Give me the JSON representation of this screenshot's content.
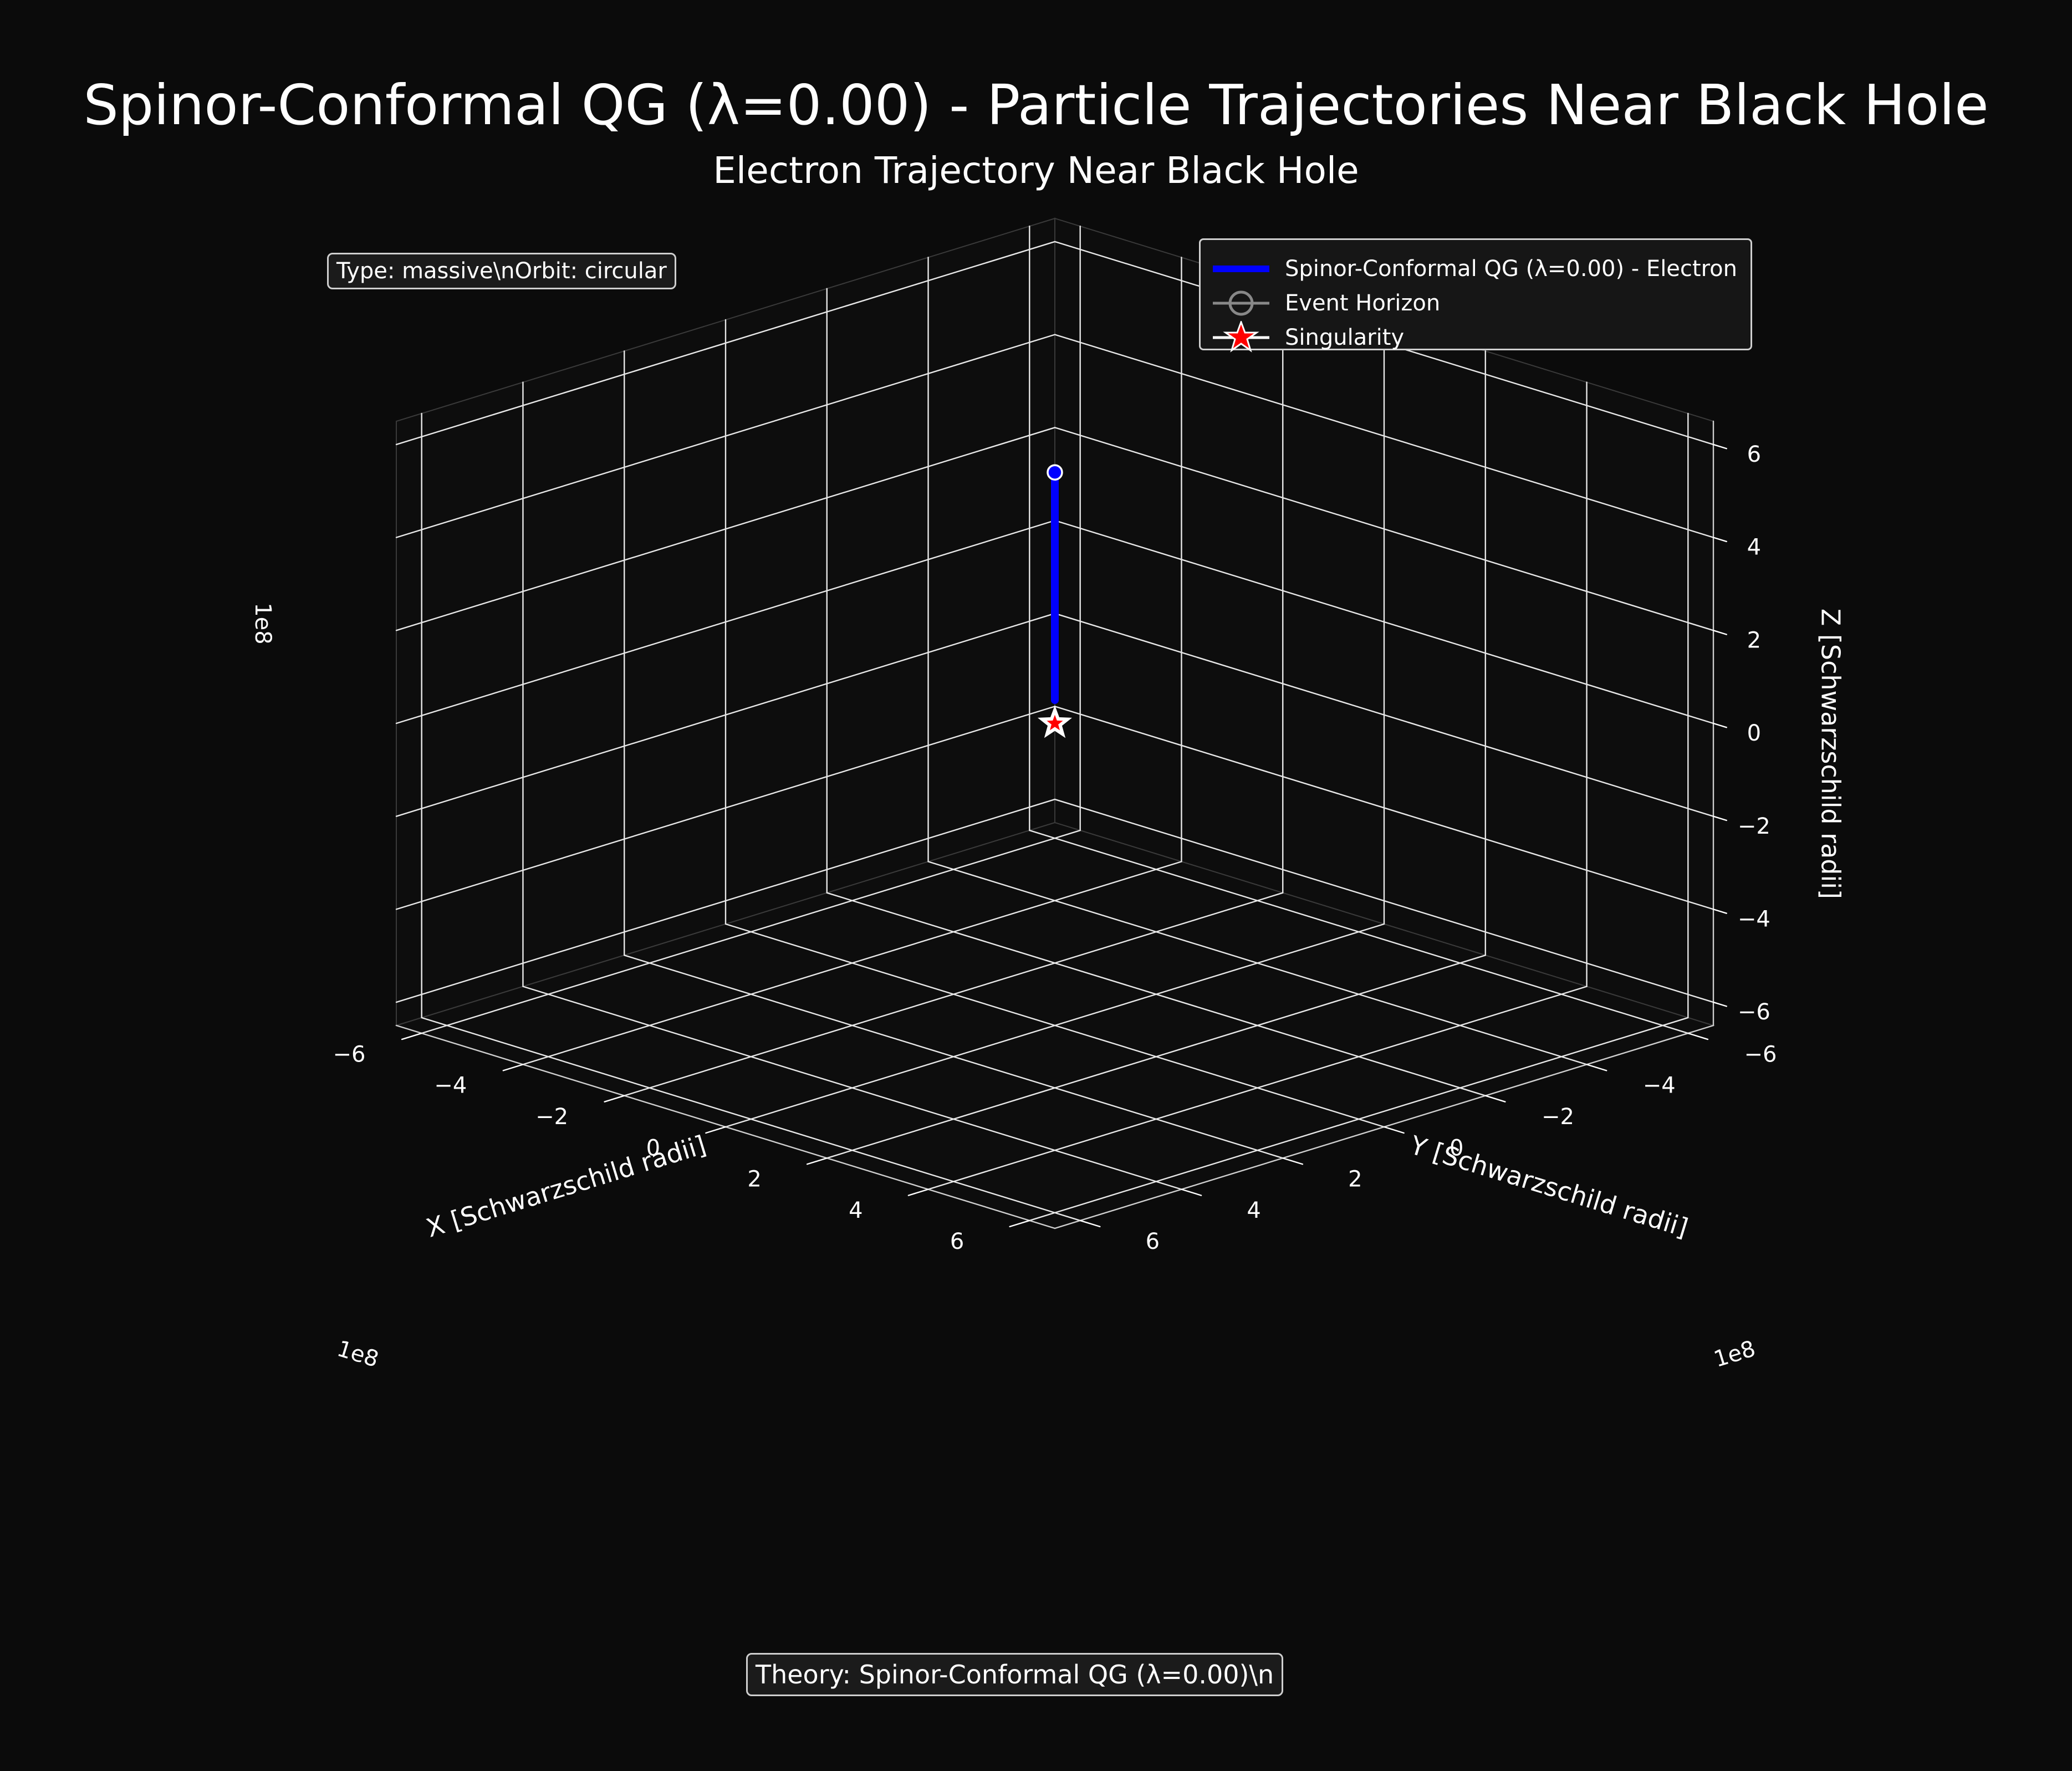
{
  "suptitle": "Spinor-Conformal QG (λ=0.00) - Particle Trajectories Near Black Hole",
  "info_box": "Type: massive\\nOrbit: circular",
  "theory_box": "Theory: Spinor-Conformal QG (λ=0.00)\\n",
  "chart_data": {
    "type": "line",
    "projection": "3d",
    "title": "Electron Trajectory Near Black Hole",
    "xlabel": "X [Schwarzschild radii]",
    "ylabel": "Y [Schwarzschild radii]",
    "zlabel": "Z [Schwarzschild radii]",
    "axis_multiplier": "1e8",
    "xlim": [
      -650000000.0,
      650000000.0
    ],
    "ylim": [
      -650000000.0,
      650000000.0
    ],
    "zlim": [
      -650000000.0,
      650000000.0
    ],
    "ticks": [
      -6,
      -4,
      -2,
      0,
      2,
      4,
      6
    ],
    "tick_labels": [
      "−6",
      "−4",
      "−2",
      "0",
      "2",
      "4",
      "6"
    ],
    "grid": true,
    "legend_position": "top-right",
    "series": [
      {
        "name": "Spinor-Conformal QG (λ=0.00) - Electron",
        "color": "#0000ff",
        "x": [
          0,
          0
        ],
        "y": [
          0,
          0
        ],
        "z": [
          50000000.0,
          540000000.0
        ],
        "start_marker": {
          "x": 0,
          "y": 0,
          "z": 540000000.0,
          "color": "#0000ff"
        }
      }
    ],
    "legend": [
      {
        "label": "Spinor-Conformal QG (λ=0.00) - Electron",
        "marker": "line",
        "color": "#0000ff"
      },
      {
        "label": "Event Horizon",
        "marker": "circle",
        "color": "#888888"
      },
      {
        "label": "Singularity",
        "marker": "star",
        "color": "#ff0000"
      }
    ],
    "singularity": {
      "x": 0,
      "y": 0,
      "z": 0,
      "color": "#ff0000"
    }
  }
}
